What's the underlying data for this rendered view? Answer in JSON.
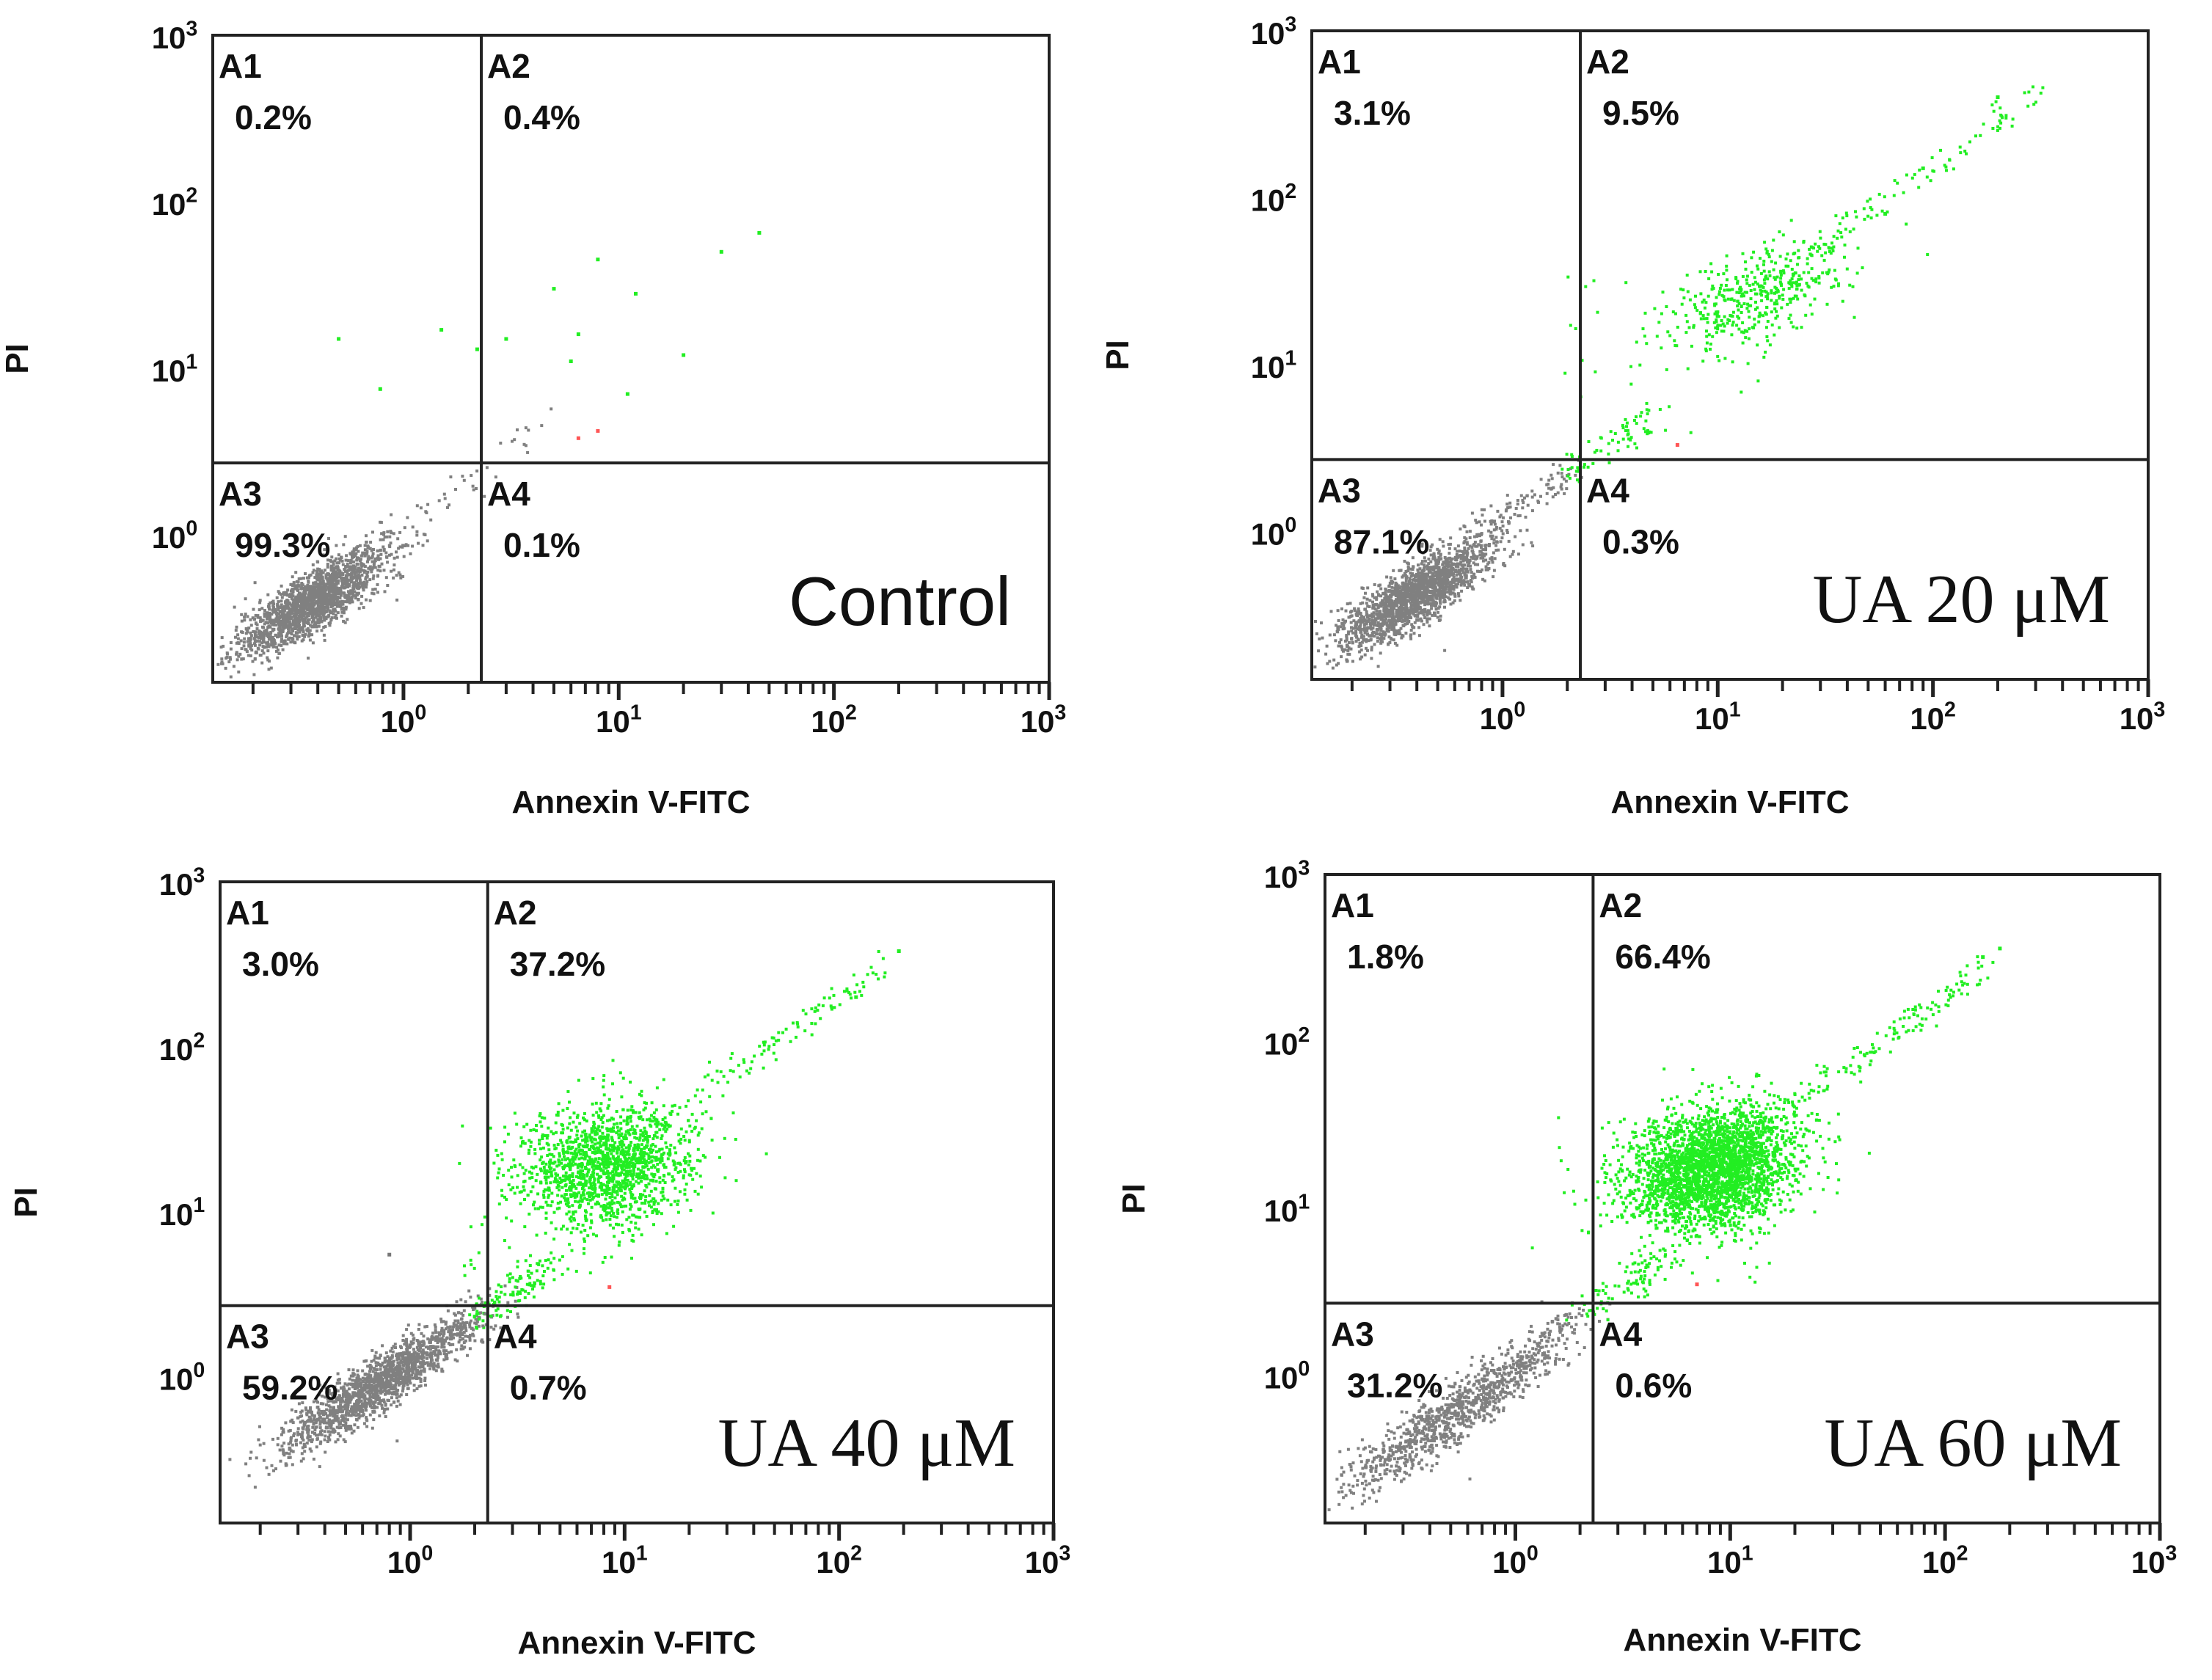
{
  "chart_data": [
    {
      "type": "scatter",
      "subtype": "flow-cytometry-dotplot",
      "condition_label": "Control",
      "xlabel": "Annexin V-FITC",
      "ylabel": "PI",
      "x_scale": "log",
      "y_scale": "log",
      "xlim": [
        0.13,
        1000
      ],
      "ylim": [
        0.13,
        1000
      ],
      "x_ticks": [
        "10^0",
        "10^1",
        "10^2",
        "10^3"
      ],
      "y_ticks": [
        "10^0",
        "10^1",
        "10^2",
        "10^3"
      ],
      "gate_x": 2.3,
      "gate_y": 2.7,
      "quadrants": [
        {
          "name": "A1",
          "percent": "0.2%"
        },
        {
          "name": "A2",
          "percent": "0.4%"
        },
        {
          "name": "A3",
          "percent": "99.3%"
        },
        {
          "name": "A4",
          "percent": "0.1%"
        }
      ],
      "population_counts": {
        "gray": 1800,
        "green": 0
      },
      "scattered_points": [
        {
          "x": 0.5,
          "y": 15,
          "color": "#22ee22"
        },
        {
          "x": 0.78,
          "y": 7.5,
          "color": "#22ee22"
        },
        {
          "x": 1.5,
          "y": 17,
          "color": "#22ee22"
        },
        {
          "x": 2.2,
          "y": 13,
          "color": "#22ee22"
        },
        {
          "x": 3,
          "y": 15,
          "color": "#22ee22"
        },
        {
          "x": 5,
          "y": 30,
          "color": "#22ee22"
        },
        {
          "x": 6.5,
          "y": 16,
          "color": "#22ee22"
        },
        {
          "x": 6,
          "y": 11,
          "color": "#22ee22"
        },
        {
          "x": 8,
          "y": 45,
          "color": "#22ee22"
        },
        {
          "x": 12,
          "y": 28,
          "color": "#22ee22"
        },
        {
          "x": 11,
          "y": 7,
          "color": "#22ee22"
        },
        {
          "x": 20,
          "y": 12,
          "color": "#22ee22"
        },
        {
          "x": 30,
          "y": 50,
          "color": "#22ee22"
        },
        {
          "x": 45,
          "y": 65,
          "color": "#22ee22"
        },
        {
          "x": 8,
          "y": 4.2,
          "color": "#ff5555"
        },
        {
          "x": 6.5,
          "y": 3.8,
          "color": "#ff5555"
        }
      ]
    },
    {
      "type": "scatter",
      "subtype": "flow-cytometry-dotplot",
      "condition_label": "UA 20 μM",
      "xlabel": "Annexin V-FITC",
      "ylabel": "PI",
      "x_scale": "log",
      "y_scale": "log",
      "xlim": [
        0.13,
        1000
      ],
      "ylim": [
        0.13,
        1000
      ],
      "x_ticks": [
        "10^0",
        "10^1",
        "10^2",
        "10^3"
      ],
      "y_ticks": [
        "10^0",
        "10^1",
        "10^2",
        "10^3"
      ],
      "gate_x": 2.3,
      "gate_y": 2.7,
      "quadrants": [
        {
          "name": "A1",
          "percent": "3.1%"
        },
        {
          "name": "A2",
          "percent": "9.5%"
        },
        {
          "name": "A3",
          "percent": "87.1%"
        },
        {
          "name": "A4",
          "percent": "0.3%"
        }
      ],
      "population_counts": {
        "gray": 1800,
        "green": 420
      },
      "scattered_points": [
        {
          "x": 200,
          "y": 400,
          "color": "#22ee22"
        },
        {
          "x": 90,
          "y": 150,
          "color": "#22ee22"
        },
        {
          "x": 60,
          "y": 80,
          "color": "#22ee22"
        },
        {
          "x": 6.5,
          "y": 3.3,
          "color": "#ff5555"
        }
      ]
    },
    {
      "type": "scatter",
      "subtype": "flow-cytometry-dotplot",
      "condition_label": "UA 40 μM",
      "xlabel": "Annexin V-FITC",
      "ylabel": "PI",
      "x_scale": "log",
      "y_scale": "log",
      "xlim": [
        0.13,
        1000
      ],
      "ylim": [
        0.13,
        1000
      ],
      "x_ticks": [
        "10^0",
        "10^1",
        "10^2",
        "10^3"
      ],
      "y_ticks": [
        "10^0",
        "10^1",
        "10^2",
        "10^3"
      ],
      "gate_x": 2.3,
      "gate_y": 2.7,
      "quadrants": [
        {
          "name": "A1",
          "percent": "3.0%"
        },
        {
          "name": "A2",
          "percent": "37.2%"
        },
        {
          "name": "A3",
          "percent": "59.2%"
        },
        {
          "name": "A4",
          "percent": "0.7%"
        }
      ],
      "population_counts": {
        "gray": 1500,
        "green": 1500
      },
      "scattered_points": [
        {
          "x": 190,
          "y": 380,
          "color": "#22ee22"
        },
        {
          "x": 120,
          "y": 200,
          "color": "#22ee22"
        },
        {
          "x": 0.8,
          "y": 5.5,
          "color": "#777777"
        },
        {
          "x": 8.5,
          "y": 3.5,
          "color": "#ff5555"
        }
      ]
    },
    {
      "type": "scatter",
      "subtype": "flow-cytometry-dotplot",
      "condition_label": "UA 60 μM",
      "xlabel": "Annexin V-FITC",
      "ylabel": "PI",
      "x_scale": "log",
      "y_scale": "log",
      "xlim": [
        0.13,
        1000
      ],
      "ylim": [
        0.13,
        1000
      ],
      "x_ticks": [
        "10^0",
        "10^1",
        "10^2",
        "10^3"
      ],
      "y_ticks": [
        "10^0",
        "10^1",
        "10^2",
        "10^3"
      ],
      "gate_x": 2.3,
      "gate_y": 2.7,
      "quadrants": [
        {
          "name": "A1",
          "percent": "1.8%"
        },
        {
          "name": "A2",
          "percent": "66.4%"
        },
        {
          "name": "A3",
          "percent": "31.2%"
        },
        {
          "name": "A4",
          "percent": "0.6%"
        }
      ],
      "population_counts": {
        "gray": 900,
        "green": 2800
      },
      "scattered_points": [
        {
          "x": 180,
          "y": 360,
          "color": "#22ee22"
        },
        {
          "x": 150,
          "y": 320,
          "color": "#22ee22"
        },
        {
          "x": 7,
          "y": 3.5,
          "color": "#ff5555"
        }
      ]
    }
  ],
  "colors": {
    "frame": "#222222",
    "live_population": "#808080",
    "apoptotic_population": "#22ee22",
    "necrotic_marker": "#ff5555"
  }
}
